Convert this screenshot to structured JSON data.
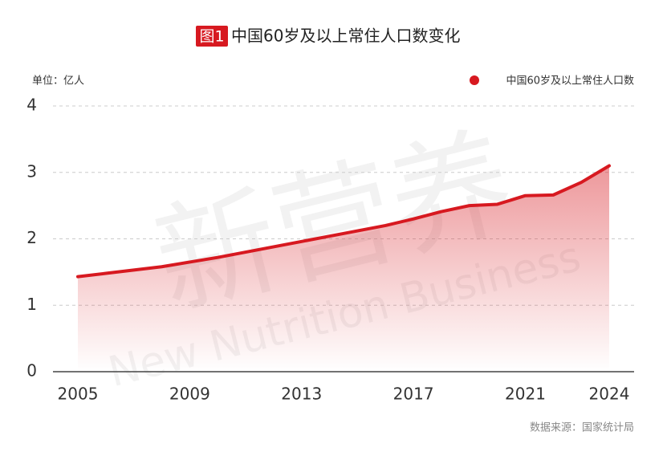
{
  "chart_data": {
    "type": "line",
    "badge": "图1",
    "title": "中国60岁及以上常住人口数变化",
    "unit": "单位：亿人",
    "source": "数据来源：国家统计局",
    "watermark": [
      "新营养",
      "New Nutrition Business"
    ],
    "x": [
      2005,
      2006,
      2007,
      2008,
      2009,
      2010,
      2011,
      2012,
      2013,
      2014,
      2015,
      2016,
      2017,
      2018,
      2019,
      2020,
      2021,
      2022,
      2023,
      2024
    ],
    "series": [
      {
        "name": "中国60岁及以上常住人口数",
        "color": "#d71920",
        "values": [
          1.43,
          1.48,
          1.53,
          1.58,
          1.65,
          1.72,
          1.8,
          1.88,
          1.96,
          2.04,
          2.12,
          2.2,
          2.3,
          2.41,
          2.5,
          2.52,
          2.65,
          2.66,
          2.85,
          3.1
        ]
      }
    ],
    "xlim": [
      2005,
      2024
    ],
    "xticks": [
      2005,
      2009,
      2013,
      2017,
      2021,
      2024
    ],
    "ylim": [
      0,
      4
    ],
    "yticks": [
      0,
      1,
      2,
      3,
      4
    ],
    "grid": true,
    "legend": "top-right"
  }
}
